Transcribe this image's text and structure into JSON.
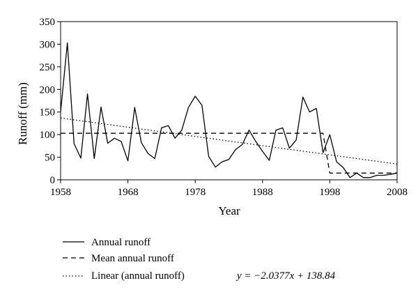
{
  "chart_data": {
    "type": "line",
    "xlabel": "Year",
    "ylabel": "Runoff (mm)",
    "xlim": [
      1958,
      2008
    ],
    "ylim": [
      0,
      350
    ],
    "xticks": [
      "1958",
      "1968",
      "1978",
      "1988",
      "1998",
      "2008"
    ],
    "yticks": [
      "0",
      "50",
      "100",
      "150",
      "200",
      "250",
      "300",
      "350"
    ],
    "legend_position": "bottom-left, below plot",
    "series": [
      {
        "name": "Annual runoff",
        "style": "solid",
        "x": [
          1958,
          1959,
          1960,
          1961,
          1962,
          1963,
          1964,
          1965,
          1966,
          1967,
          1968,
          1969,
          1970,
          1971,
          1972,
          1973,
          1974,
          1975,
          1976,
          1977,
          1978,
          1979,
          1980,
          1981,
          1982,
          1983,
          1984,
          1985,
          1986,
          1987,
          1988,
          1989,
          1990,
          1991,
          1992,
          1993,
          1994,
          1995,
          1996,
          1997,
          1998,
          1999,
          2000,
          2001,
          2002,
          2003,
          2004,
          2005,
          2006,
          2007,
          2008
        ],
        "y": [
          150,
          303,
          80,
          48,
          190,
          47,
          161,
          81,
          92,
          85,
          42,
          160,
          82,
          58,
          47,
          115,
          120,
          92,
          110,
          160,
          185,
          165,
          52,
          28,
          40,
          45,
          67,
          78,
          110,
          85,
          63,
          43,
          110,
          115,
          70,
          88,
          183,
          150,
          158,
          60,
          100,
          40,
          27,
          5,
          15,
          5,
          5,
          10,
          10,
          12,
          15
        ]
      },
      {
        "name": "Mean annual runoff",
        "style": "dashed",
        "x": [
          1958,
          1997,
          1998,
          2008
        ],
        "y": [
          103,
          103,
          15,
          15
        ]
      },
      {
        "name": "Linear (annual runoff)",
        "style": "dotted",
        "x": [
          1958,
          2008
        ],
        "y": [
          136.8,
          34.92
        ]
      }
    ],
    "legend": [
      {
        "label": "Annual runoff",
        "style": "solid"
      },
      {
        "label": "Mean annual runoff",
        "style": "dashed"
      },
      {
        "label": "Linear (annual runoff)",
        "style": "dotted",
        "equation": "y = −2.0377x + 138.84"
      }
    ]
  }
}
